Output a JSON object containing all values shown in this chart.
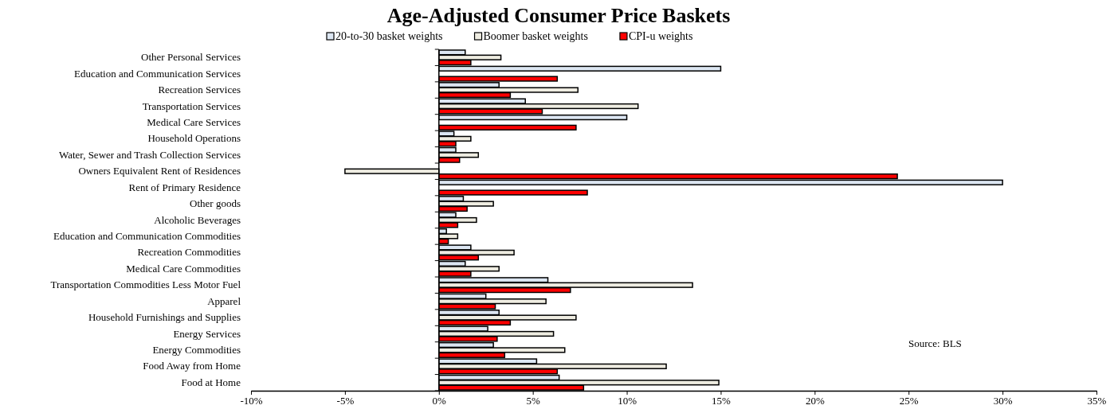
{
  "chart_data": {
    "type": "bar",
    "orientation": "horizontal",
    "title": "Age-Adjusted Consumer Price Baskets",
    "categories": [
      "Other Personal Services",
      "Education and Communication Services",
      "Recreation Services",
      "Transportation Services",
      "Medical Care Services",
      "Household Operations",
      "Water, Sewer and Trash Collection Services",
      "Owners Equivalent Rent of Residences",
      "Rent of Primary Residence",
      "Other goods",
      "Alcoholic Beverages",
      "Education and Communication Commodities",
      "Recreation Commodities",
      "Medical Care Commodities",
      "Transportation Commodities Less Motor Fuel",
      "Apparel",
      "Household Furnishings and Supplies",
      "Energy Services",
      "Energy Commodities",
      "Food Away from Home",
      "Food at Home"
    ],
    "series": [
      {
        "name": "20-to-30 basket weights",
        "color": "#dce6f2",
        "values": [
          1.4,
          15.0,
          3.2,
          4.6,
          10.0,
          0.8,
          0.9,
          0,
          30.0,
          1.3,
          0.9,
          0.4,
          1.7,
          1.4,
          5.8,
          2.5,
          3.2,
          2.6,
          2.9,
          5.2,
          6.4
        ]
      },
      {
        "name": "Boomer basket weights",
        "color": "#eeece1",
        "values": [
          3.3,
          0,
          7.4,
          10.6,
          0,
          1.7,
          2.1,
          -5.0,
          0,
          2.9,
          2.0,
          1.0,
          4.0,
          3.2,
          13.5,
          5.7,
          7.3,
          6.1,
          6.7,
          12.1,
          14.9
        ]
      },
      {
        "name": "CPI-u weights",
        "color": "#ff0000",
        "values": [
          1.7,
          6.3,
          3.8,
          5.5,
          7.3,
          0.9,
          1.1,
          24.4,
          7.9,
          1.5,
          1.0,
          0.5,
          2.1,
          1.7,
          7.0,
          3.0,
          3.8,
          3.1,
          3.5,
          6.3,
          7.7
        ]
      }
    ],
    "xlim": [
      -10,
      35
    ],
    "xticks": [
      {
        "value": -10,
        "label": "-10%"
      },
      {
        "value": -5,
        "label": "-5%"
      },
      {
        "value": 0,
        "label": "0%"
      },
      {
        "value": 5,
        "label": "5%"
      },
      {
        "value": 10,
        "label": "10%"
      },
      {
        "value": 15,
        "label": "15%"
      },
      {
        "value": 20,
        "label": "20%"
      },
      {
        "value": 25,
        "label": "25%"
      },
      {
        "value": 30,
        "label": "30%"
      },
      {
        "value": 35,
        "label": "35%"
      }
    ],
    "legend": "top",
    "annotations": [
      "Source: BLS"
    ]
  }
}
